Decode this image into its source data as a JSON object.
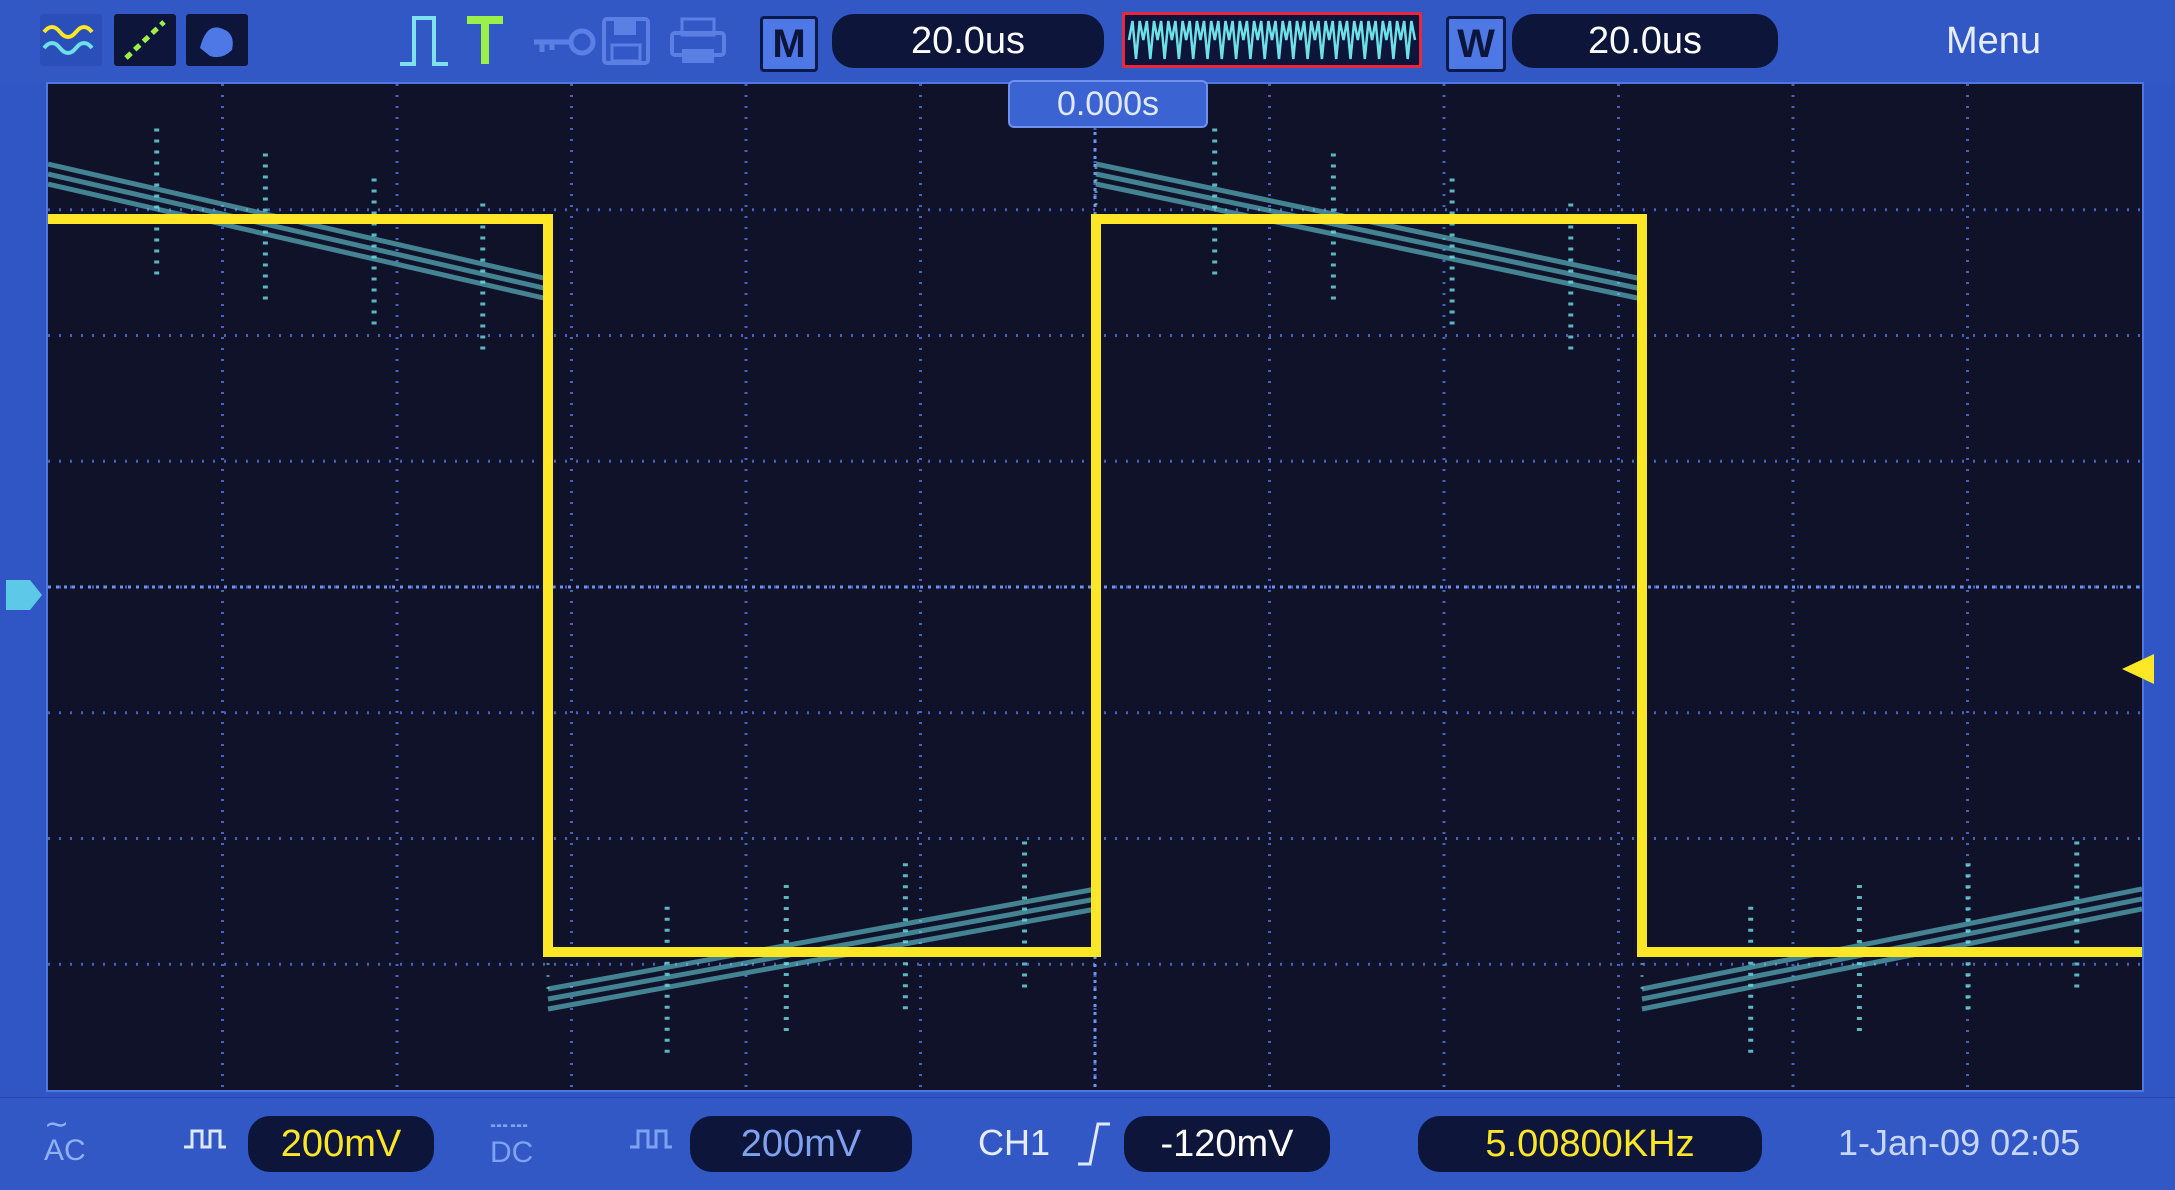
{
  "toolbar": {
    "icons": [
      "waveform-mode-icon",
      "xy-mode-icon",
      "persist-icon",
      "pulse-trigger-icon",
      "trigger-t-icon",
      "key-lock-icon",
      "save-icon",
      "print-icon"
    ],
    "timebase_mode_label": "M",
    "timebase_value": "20.0us",
    "window_mode_label": "W",
    "window_value": "20.0us",
    "menu_label": "Menu",
    "trigger_position": "0.000s"
  },
  "status": {
    "ch1_coupling": "AC",
    "ch1_scale": "200mV",
    "ch2_coupling": "DC",
    "ch2_scale": "200mV",
    "trigger_source": "CH1",
    "trigger_level": "-120mV",
    "frequency": "5.00800KHz",
    "datetime": "1-Jan-09 02:05"
  },
  "colors": {
    "ch1": "#ffe626",
    "ch2": "#6ee0e8",
    "grid": "#4a73d8",
    "screen": "#10122a",
    "frame": "#3258c6"
  }
}
